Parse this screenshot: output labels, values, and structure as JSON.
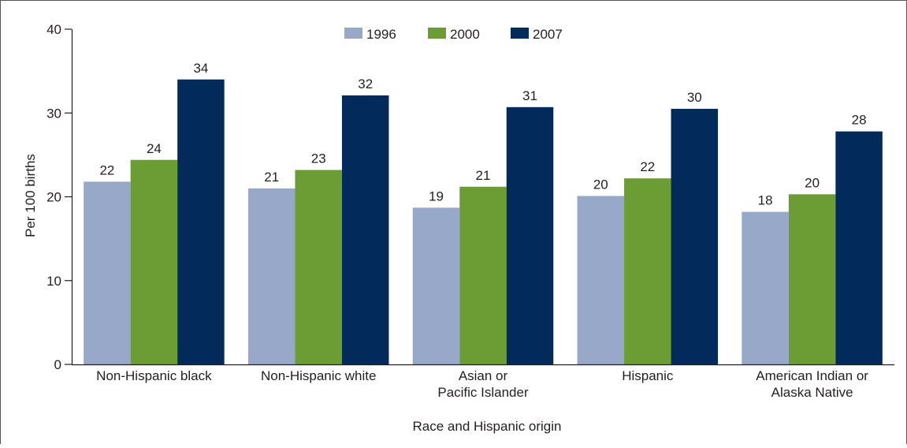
{
  "chart_data": {
    "type": "bar",
    "xlabel": "Race and Hispanic origin",
    "ylabel": "Per 100 births",
    "ylim": [
      0,
      40
    ],
    "yticks": [
      0,
      10,
      20,
      30,
      40
    ],
    "grid": false,
    "legend_position": "top-center",
    "categories": [
      [
        "Non-Hispanic black"
      ],
      [
        "Non-Hispanic white"
      ],
      [
        "Asian or",
        "Pacific Islander"
      ],
      [
        "Hispanic"
      ],
      [
        "American Indian or",
        "Alaska Native"
      ]
    ],
    "series": [
      {
        "name": "1996",
        "color": "#97a8c8",
        "values": [
          21.8,
          21.0,
          18.7,
          20.1,
          18.2
        ],
        "labels": [
          "22",
          "21",
          "19",
          "20",
          "18"
        ]
      },
      {
        "name": "2000",
        "color": "#6c9d35",
        "values": [
          24.4,
          23.2,
          21.2,
          22.2,
          20.3
        ],
        "labels": [
          "24",
          "23",
          "21",
          "22",
          "20"
        ]
      },
      {
        "name": "2007",
        "color": "#022a5a",
        "values": [
          34.0,
          32.1,
          30.7,
          30.5,
          27.8
        ],
        "labels": [
          "34",
          "32",
          "31",
          "30",
          "28"
        ]
      }
    ]
  }
}
